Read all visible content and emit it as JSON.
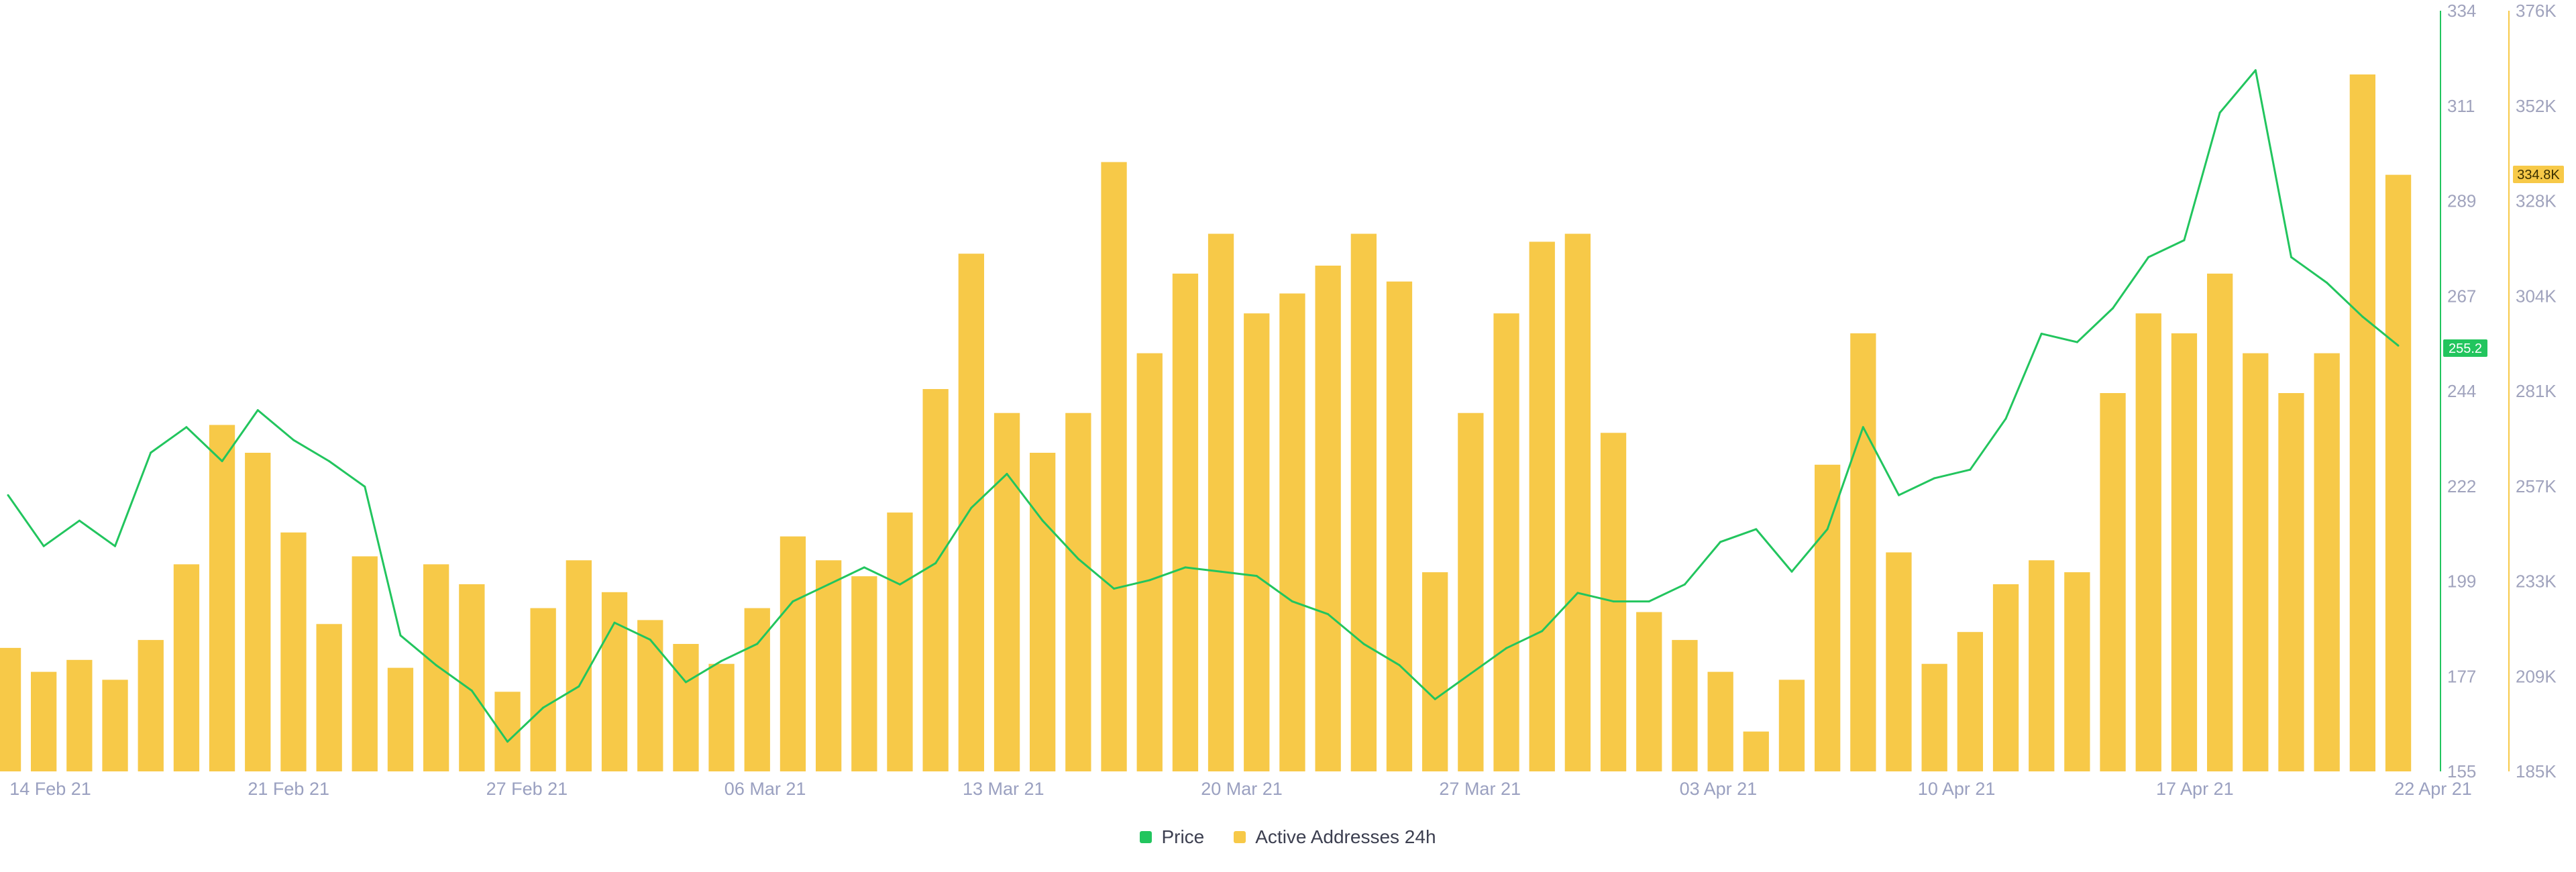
{
  "chart_data": {
    "type": "bar+line",
    "x_axis": {
      "tick_labels": [
        "14 Feb 21",
        "21 Feb 21",
        "27 Feb 21",
        "06 Mar 21",
        "13 Mar 21",
        "20 Mar 21",
        "27 Mar 21",
        "03 Apr 21",
        "10 Apr 21",
        "17 Apr 21",
        "22 Apr 21"
      ],
      "range": [
        "2021-02-14",
        "2021-04-22"
      ]
    },
    "y_axis_left": {
      "series": "Price",
      "range": [
        155,
        334
      ],
      "tick_labels": [
        "155",
        "177",
        "199",
        "222",
        "244",
        "267",
        "289",
        "311",
        "334"
      ],
      "color": "#22c55e"
    },
    "y_axis_right": {
      "series": "Active Addresses 24h",
      "range": [
        185000,
        376000
      ],
      "tick_labels": [
        "185K",
        "209K",
        "233K",
        "257K",
        "281K",
        "304K",
        "328K",
        "352K",
        "376K"
      ],
      "color": "#f7c948"
    },
    "last_values": {
      "price_label": "255.2",
      "active_label": "334.8K"
    },
    "series": [
      {
        "name": "Price",
        "type": "line",
        "color": "#22c55e",
        "points": [
          [
            "2021-02-14",
            220
          ],
          [
            "2021-02-15",
            208
          ],
          [
            "2021-02-16",
            214
          ],
          [
            "2021-02-17",
            208
          ],
          [
            "2021-02-18",
            230
          ],
          [
            "2021-02-19",
            236
          ],
          [
            "2021-02-20",
            228
          ],
          [
            "2021-02-21",
            240
          ],
          [
            "2021-02-22",
            233
          ],
          [
            "2021-02-23",
            228
          ],
          [
            "2021-02-24",
            222
          ],
          [
            "2021-02-25",
            187
          ],
          [
            "2021-02-26",
            180
          ],
          [
            "2021-02-27",
            174
          ],
          [
            "2021-02-28",
            162
          ],
          [
            "2021-03-01",
            170
          ],
          [
            "2021-03-02",
            175
          ],
          [
            "2021-03-03",
            190
          ],
          [
            "2021-03-04",
            186
          ],
          [
            "2021-03-05",
            176
          ],
          [
            "2021-03-06",
            181
          ],
          [
            "2021-03-07",
            185
          ],
          [
            "2021-03-08",
            195
          ],
          [
            "2021-03-09",
            199
          ],
          [
            "2021-03-10",
            203
          ],
          [
            "2021-03-11",
            199
          ],
          [
            "2021-03-12",
            204
          ],
          [
            "2021-03-13",
            217
          ],
          [
            "2021-03-14",
            225
          ],
          [
            "2021-03-15",
            214
          ],
          [
            "2021-03-16",
            205
          ],
          [
            "2021-03-17",
            198
          ],
          [
            "2021-03-18",
            200
          ],
          [
            "2021-03-19",
            203
          ],
          [
            "2021-03-20",
            202
          ],
          [
            "2021-03-21",
            201
          ],
          [
            "2021-03-22",
            195
          ],
          [
            "2021-03-23",
            192
          ],
          [
            "2021-03-24",
            185
          ],
          [
            "2021-03-25",
            180
          ],
          [
            "2021-03-26",
            172
          ],
          [
            "2021-03-27",
            178
          ],
          [
            "2021-03-28",
            184
          ],
          [
            "2021-03-29",
            188
          ],
          [
            "2021-03-30",
            197
          ],
          [
            "2021-03-31",
            195
          ],
          [
            "2021-04-01",
            195
          ],
          [
            "2021-04-02",
            199
          ],
          [
            "2021-04-03",
            209
          ],
          [
            "2021-04-04",
            212
          ],
          [
            "2021-04-05",
            202
          ],
          [
            "2021-04-06",
            212
          ],
          [
            "2021-04-07",
            236
          ],
          [
            "2021-04-08",
            220
          ],
          [
            "2021-04-09",
            224
          ],
          [
            "2021-04-10",
            226
          ],
          [
            "2021-04-11",
            238
          ],
          [
            "2021-04-12",
            258
          ],
          [
            "2021-04-13",
            256
          ],
          [
            "2021-04-14",
            264
          ],
          [
            "2021-04-15",
            276
          ],
          [
            "2021-04-16",
            280
          ],
          [
            "2021-04-17",
            310
          ],
          [
            "2021-04-18",
            320
          ],
          [
            "2021-04-19",
            276
          ],
          [
            "2021-04-20",
            270
          ],
          [
            "2021-04-21",
            262
          ],
          [
            "2021-04-22",
            255.2
          ]
        ]
      },
      {
        "name": "Active Addresses 24h",
        "type": "bar",
        "color": "#f7c948",
        "points": [
          [
            "2021-02-14",
            216000
          ],
          [
            "2021-02-15",
            210000
          ],
          [
            "2021-02-16",
            213000
          ],
          [
            "2021-02-17",
            208000
          ],
          [
            "2021-02-18",
            218000
          ],
          [
            "2021-02-19",
            237000
          ],
          [
            "2021-02-20",
            272000
          ],
          [
            "2021-02-21",
            265000
          ],
          [
            "2021-02-22",
            245000
          ],
          [
            "2021-02-23",
            222000
          ],
          [
            "2021-02-24",
            239000
          ],
          [
            "2021-02-25",
            211000
          ],
          [
            "2021-02-26",
            237000
          ],
          [
            "2021-02-27",
            232000
          ],
          [
            "2021-02-28",
            205000
          ],
          [
            "2021-03-01",
            226000
          ],
          [
            "2021-03-02",
            238000
          ],
          [
            "2021-03-03",
            230000
          ],
          [
            "2021-03-04",
            223000
          ],
          [
            "2021-03-05",
            217000
          ],
          [
            "2021-03-06",
            212000
          ],
          [
            "2021-03-07",
            226000
          ],
          [
            "2021-03-08",
            244000
          ],
          [
            "2021-03-09",
            238000
          ],
          [
            "2021-03-10",
            234000
          ],
          [
            "2021-03-11",
            250000
          ],
          [
            "2021-03-12",
            281000
          ],
          [
            "2021-03-13",
            315000
          ],
          [
            "2021-03-14",
            275000
          ],
          [
            "2021-03-15",
            265000
          ],
          [
            "2021-03-16",
            275000
          ],
          [
            "2021-03-17",
            338000
          ],
          [
            "2021-03-18",
            290000
          ],
          [
            "2021-03-19",
            310000
          ],
          [
            "2021-03-20",
            320000
          ],
          [
            "2021-03-21",
            300000
          ],
          [
            "2021-03-22",
            305000
          ],
          [
            "2021-03-23",
            312000
          ],
          [
            "2021-03-24",
            320000
          ],
          [
            "2021-03-25",
            308000
          ],
          [
            "2021-03-26",
            235000
          ],
          [
            "2021-03-27",
            275000
          ],
          [
            "2021-03-28",
            300000
          ],
          [
            "2021-03-29",
            318000
          ],
          [
            "2021-03-30",
            320000
          ],
          [
            "2021-03-31",
            270000
          ],
          [
            "2021-04-01",
            225000
          ],
          [
            "2021-04-02",
            218000
          ],
          [
            "2021-04-03",
            210000
          ],
          [
            "2021-04-04",
            195000
          ],
          [
            "2021-04-05",
            208000
          ],
          [
            "2021-04-06",
            262000
          ],
          [
            "2021-04-07",
            295000
          ],
          [
            "2021-04-08",
            240000
          ],
          [
            "2021-04-09",
            212000
          ],
          [
            "2021-04-10",
            220000
          ],
          [
            "2021-04-11",
            232000
          ],
          [
            "2021-04-12",
            238000
          ],
          [
            "2021-04-13",
            235000
          ],
          [
            "2021-04-14",
            280000
          ],
          [
            "2021-04-15",
            300000
          ],
          [
            "2021-04-16",
            295000
          ],
          [
            "2021-04-17",
            310000
          ],
          [
            "2021-04-18",
            290000
          ],
          [
            "2021-04-19",
            280000
          ],
          [
            "2021-04-20",
            290000
          ],
          [
            "2021-04-21",
            360000
          ],
          [
            "2021-04-22",
            334800
          ]
        ]
      }
    ],
    "legend": {
      "placement": "bottom-center"
    },
    "grid": false
  }
}
